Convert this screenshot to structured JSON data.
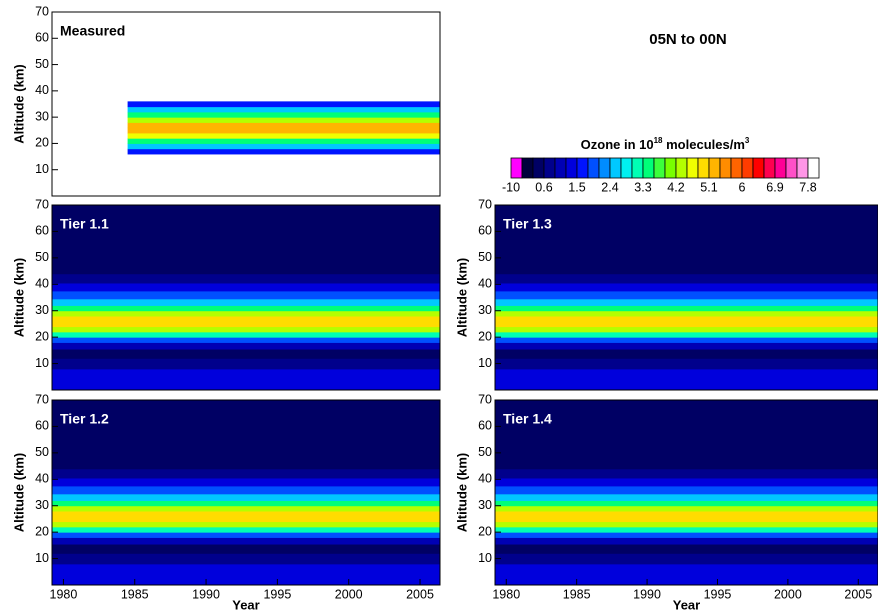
{
  "title": "05N to 00N",
  "colorbar": {
    "title": [
      "Ozone in 10",
      "18",
      " molecules/m",
      "3"
    ],
    "levels": [
      -10,
      0,
      0.3,
      0.6,
      0.9,
      1.2,
      1.5,
      1.8,
      2.1,
      2.4,
      2.7,
      3,
      3.3,
      3.6,
      3.9,
      4.2,
      4.5,
      4.8,
      5.1,
      5.4,
      5.7,
      6,
      6.3,
      6.6,
      6.9,
      7.2,
      7.5,
      7.8,
      8.1
    ],
    "colors": [
      "#ff00ff",
      "#00003c",
      "#000064",
      "#00008c",
      "#0000b4",
      "#0000dc",
      "#0014ff",
      "#0050ff",
      "#008cff",
      "#00c8ff",
      "#00f0f0",
      "#00ffb4",
      "#00ff78",
      "#3cff3c",
      "#78ff00",
      "#b4ff00",
      "#f0ff00",
      "#ffdc00",
      "#ffb400",
      "#ff8c00",
      "#ff6400",
      "#ff3c00",
      "#ff0000",
      "#ff0050",
      "#ff0096",
      "#ff50c8",
      "#ff96e6",
      "#ffffff"
    ],
    "ticks": [
      -10,
      0.6,
      1.5,
      2.4,
      3.3,
      4.2,
      5.1,
      6,
      6.9,
      7.8
    ]
  },
  "chart_data": [
    {
      "type": "contour",
      "title": "Measured",
      "xlim": [
        1979.2,
        2006.4
      ],
      "data_xlim": [
        1984.5,
        2006.4
      ],
      "ylim": [
        0,
        70
      ],
      "yticks": [
        10,
        20,
        30,
        40,
        50,
        60,
        70
      ],
      "ylabel": "Altitude (km)",
      "altitude": [
        17,
        19,
        21,
        23,
        25,
        27,
        29,
        31,
        33,
        35
      ],
      "values": [
        1.5,
        2.4,
        3.3,
        4.5,
        5.1,
        5.1,
        4.2,
        3.3,
        2.4,
        1.5
      ]
    },
    {
      "type": "contour",
      "title": "Tier 1.1",
      "xlim": [
        1979.2,
        2006.4
      ],
      "ylim": [
        0,
        70
      ],
      "yticks": [
        10,
        20,
        30,
        40,
        50,
        60,
        70
      ],
      "ylabel": "Altitude (km)",
      "altitude": [
        2,
        6,
        10,
        14,
        17,
        19,
        21,
        23,
        25,
        27,
        29,
        31,
        33,
        36,
        39,
        42,
        46,
        52,
        60,
        68
      ],
      "values": [
        1.3,
        1.2,
        0.8,
        0.5,
        0.9,
        1.8,
        3,
        4.3,
        5,
        5,
        4.2,
        3.3,
        2.5,
        1.8,
        1.3,
        0.8,
        0.4,
        0.4,
        0.4,
        0.4
      ]
    },
    {
      "type": "contour",
      "title": "Tier 1.2",
      "xlim": [
        1979.2,
        2006.4
      ],
      "xticks": [
        1980,
        1985,
        1990,
        1995,
        2000,
        2005
      ],
      "xlabel": "Year",
      "ylim": [
        0,
        70
      ],
      "yticks": [
        10,
        20,
        30,
        40,
        50,
        60,
        70
      ],
      "ylabel": "Altitude (km)",
      "altitude": [
        2,
        6,
        10,
        14,
        17,
        19,
        21,
        23,
        25,
        27,
        29,
        31,
        33,
        36,
        39,
        42,
        46,
        52,
        60,
        68
      ],
      "values": [
        1.3,
        1.2,
        0.8,
        0.5,
        0.9,
        1.8,
        3,
        4.3,
        5,
        5,
        4.2,
        3.3,
        2.5,
        1.8,
        1.3,
        0.8,
        0.4,
        0.4,
        0.4,
        0.4
      ]
    },
    {
      "type": "contour",
      "title": "Tier 1.3",
      "xlim": [
        1979.2,
        2006.4
      ],
      "ylim": [
        0,
        70
      ],
      "yticks": [
        10,
        20,
        30,
        40,
        50,
        60,
        70
      ],
      "ylabel": "Altitude (km)",
      "altitude": [
        2,
        6,
        10,
        14,
        17,
        19,
        21,
        23,
        25,
        27,
        29,
        31,
        33,
        36,
        39,
        42,
        46,
        52,
        60,
        68
      ],
      "values": [
        1.3,
        1.2,
        0.8,
        0.5,
        0.9,
        1.8,
        3,
        4.3,
        5,
        5,
        4.2,
        3.3,
        2.5,
        1.8,
        1.3,
        0.8,
        0.4,
        0.4,
        0.4,
        0.4
      ]
    },
    {
      "type": "contour",
      "title": "Tier 1.4",
      "xlim": [
        1979.2,
        2006.4
      ],
      "xticks": [
        1980,
        1985,
        1990,
        1995,
        2000,
        2005
      ],
      "xlabel": "Year",
      "ylim": [
        0,
        70
      ],
      "yticks": [
        10,
        20,
        30,
        40,
        50,
        60,
        70
      ],
      "ylabel": "Altitude (km)",
      "altitude": [
        2,
        6,
        10,
        14,
        17,
        19,
        21,
        23,
        25,
        27,
        29,
        31,
        33,
        36,
        39,
        42,
        46,
        52,
        60,
        68
      ],
      "values": [
        1.3,
        1.2,
        0.8,
        0.5,
        0.9,
        1.8,
        3,
        4.3,
        5,
        5,
        4.2,
        3.3,
        2.5,
        1.8,
        1.3,
        0.8,
        0.4,
        0.4,
        0.4,
        0.4
      ]
    }
  ]
}
